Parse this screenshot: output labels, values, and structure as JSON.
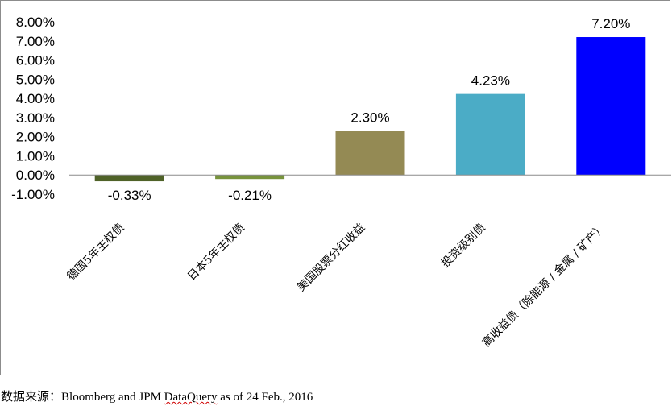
{
  "chart_data": {
    "type": "bar",
    "title": "",
    "xlabel": "",
    "ylabel": "",
    "categories": [
      "德国5年主权债",
      "日本5年主权债",
      "美国股票分红收益",
      "投资级别债",
      "高收益债（除能源 / 金属 / 矿产）"
    ],
    "values": [
      -0.33,
      -0.21,
      2.3,
      4.23,
      7.2
    ],
    "data_labels": [
      "-0.33%",
      "-0.21%",
      "2.30%",
      "4.23%",
      "7.20%"
    ],
    "colors": [
      "#4f6228",
      "#77933c",
      "#948a54",
      "#4bacc6",
      "#0000ff"
    ],
    "ylim": [
      -1,
      8
    ],
    "yticks": [
      {
        "value": 8,
        "label": "8.00%"
      },
      {
        "value": 7,
        "label": "7.00%"
      },
      {
        "value": 6,
        "label": "6.00%"
      },
      {
        "value": 5,
        "label": "5.00%"
      },
      {
        "value": 4,
        "label": "4.00%"
      },
      {
        "value": 3,
        "label": "3.00%"
      },
      {
        "value": 2,
        "label": "2.00%"
      },
      {
        "value": 1,
        "label": "1.00%"
      },
      {
        "value": 0,
        "label": "0.00%"
      },
      {
        "value": -1,
        "label": "-1.00%"
      }
    ],
    "grid": false,
    "legend": "none"
  },
  "source": {
    "prefix": "数据来源：",
    "text_before": "Bloomberg and JPM ",
    "underlined": "DataQuery",
    "text_after": " as of 24 Feb., 2016"
  }
}
